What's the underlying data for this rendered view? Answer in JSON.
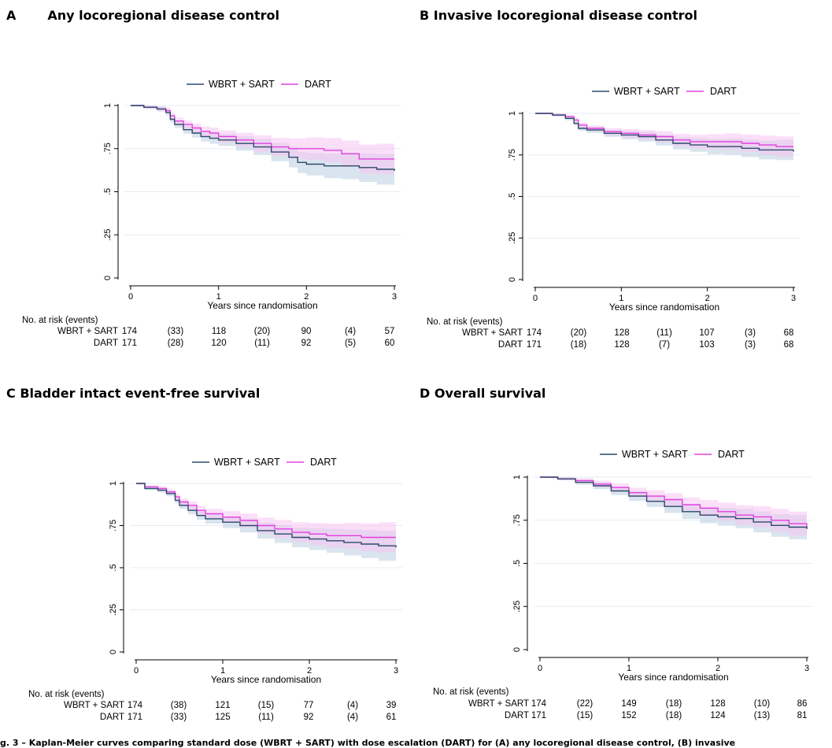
{
  "legend": {
    "series_a": "WBRT + SART",
    "series_b": "DART"
  },
  "colors": {
    "series_a": "#2b4a6b",
    "series_b": "#e040e0",
    "band_a": "#b9cde0",
    "band_b": "#f7c4f2",
    "grid": "#e6ecf1"
  },
  "axis": {
    "xlabel": "Years since randomisation",
    "x_ticks": [
      "0",
      "1",
      "2",
      "3"
    ],
    "y_ticks": [
      "0",
      ".25",
      ".5",
      ".75",
      "1"
    ]
  },
  "risk_table": {
    "header": "No. at risk (events)",
    "row_labels": [
      "WBRT + SART",
      "DART"
    ]
  },
  "caption": "g. 3 – Kaplan-Meier curves comparing standard dose (WBRT + SART) with dose escalation (DART) for (A) any locoregional disease control, (B) invasive",
  "chart_data": [
    {
      "letter": "A",
      "title": "Any locoregional disease control",
      "type": "line",
      "xlim": [
        0,
        3
      ],
      "ylim": [
        0,
        1
      ],
      "series": [
        {
          "name": "WBRT + SART",
          "x": [
            0,
            0.15,
            0.3,
            0.4,
            0.45,
            0.5,
            0.6,
            0.7,
            0.8,
            0.9,
            1.0,
            1.2,
            1.4,
            1.6,
            1.8,
            1.9,
            2.0,
            2.2,
            2.4,
            2.6,
            2.8,
            3.0
          ],
          "y": [
            1.0,
            0.99,
            0.98,
            0.96,
            0.92,
            0.89,
            0.86,
            0.84,
            0.82,
            0.81,
            0.8,
            0.78,
            0.76,
            0.73,
            0.7,
            0.67,
            0.66,
            0.65,
            0.65,
            0.64,
            0.63,
            0.62
          ]
        },
        {
          "name": "DART",
          "x": [
            0,
            0.15,
            0.3,
            0.4,
            0.45,
            0.5,
            0.6,
            0.7,
            0.8,
            0.9,
            1.0,
            1.2,
            1.4,
            1.6,
            1.8,
            2.0,
            2.2,
            2.4,
            2.6,
            2.8,
            3.0
          ],
          "y": [
            1.0,
            0.99,
            0.98,
            0.97,
            0.94,
            0.91,
            0.89,
            0.87,
            0.85,
            0.84,
            0.82,
            0.8,
            0.78,
            0.76,
            0.75,
            0.75,
            0.74,
            0.72,
            0.69,
            0.69,
            0.69
          ]
        }
      ],
      "risk": {
        "a": [
          "174",
          "(33)",
          "118",
          "(20)",
          "90",
          "(4)",
          "57"
        ],
        "b": [
          "171",
          "(28)",
          "120",
          "(11)",
          "92",
          "(5)",
          "60"
        ]
      }
    },
    {
      "letter": "B",
      "title": "Invasive locoregional disease control",
      "type": "line",
      "xlim": [
        0,
        3
      ],
      "ylim": [
        0,
        1
      ],
      "series": [
        {
          "name": "WBRT + SART",
          "x": [
            0,
            0.2,
            0.35,
            0.45,
            0.5,
            0.6,
            0.8,
            1.0,
            1.2,
            1.4,
            1.6,
            1.8,
            2.0,
            2.2,
            2.4,
            2.6,
            2.8,
            3.0
          ],
          "y": [
            1.0,
            0.99,
            0.97,
            0.94,
            0.91,
            0.9,
            0.88,
            0.87,
            0.86,
            0.84,
            0.82,
            0.81,
            0.8,
            0.8,
            0.79,
            0.78,
            0.78,
            0.77
          ]
        },
        {
          "name": "DART",
          "x": [
            0,
            0.2,
            0.35,
            0.45,
            0.5,
            0.6,
            0.8,
            1.0,
            1.2,
            1.4,
            1.6,
            1.8,
            2.0,
            2.2,
            2.4,
            2.6,
            2.8,
            3.0
          ],
          "y": [
            1.0,
            0.99,
            0.98,
            0.96,
            0.93,
            0.91,
            0.89,
            0.88,
            0.87,
            0.86,
            0.84,
            0.83,
            0.83,
            0.83,
            0.82,
            0.81,
            0.8,
            0.8
          ]
        }
      ],
      "risk": {
        "a": [
          "174",
          "(20)",
          "128",
          "(11)",
          "107",
          "(3)",
          "68"
        ],
        "b": [
          "171",
          "(18)",
          "128",
          "(7)",
          "103",
          "(3)",
          "68"
        ]
      }
    },
    {
      "letter": "C",
      "title": "Bladder intact event-free survival",
      "type": "line",
      "xlim": [
        0,
        3
      ],
      "ylim": [
        0,
        1
      ],
      "series": [
        {
          "name": "WBRT + SART",
          "x": [
            0,
            0.1,
            0.25,
            0.35,
            0.45,
            0.5,
            0.6,
            0.7,
            0.8,
            1.0,
            1.2,
            1.4,
            1.6,
            1.8,
            2.0,
            2.2,
            2.4,
            2.6,
            2.8,
            3.0
          ],
          "y": [
            1.0,
            0.97,
            0.96,
            0.94,
            0.9,
            0.87,
            0.84,
            0.81,
            0.79,
            0.77,
            0.75,
            0.72,
            0.7,
            0.68,
            0.67,
            0.66,
            0.65,
            0.64,
            0.63,
            0.62
          ]
        },
        {
          "name": "DART",
          "x": [
            0,
            0.1,
            0.25,
            0.35,
            0.45,
            0.5,
            0.6,
            0.7,
            0.8,
            1.0,
            1.2,
            1.4,
            1.6,
            1.8,
            2.0,
            2.2,
            2.4,
            2.6,
            2.8,
            3.0
          ],
          "y": [
            1.0,
            0.98,
            0.97,
            0.95,
            0.92,
            0.89,
            0.87,
            0.84,
            0.82,
            0.8,
            0.78,
            0.75,
            0.73,
            0.71,
            0.7,
            0.69,
            0.69,
            0.68,
            0.68,
            0.68
          ]
        }
      ],
      "risk": {
        "a": [
          "174",
          "(38)",
          "121",
          "(15)",
          "77",
          "(4)",
          "39"
        ],
        "b": [
          "171",
          "(33)",
          "125",
          "(11)",
          "92",
          "(4)",
          "61"
        ]
      }
    },
    {
      "letter": "D",
      "title": "Overall survival",
      "type": "line",
      "xlim": [
        0,
        3
      ],
      "ylim": [
        0,
        1
      ],
      "series": [
        {
          "name": "WBRT + SART",
          "x": [
            0,
            0.2,
            0.4,
            0.6,
            0.8,
            1.0,
            1.2,
            1.4,
            1.6,
            1.8,
            2.0,
            2.2,
            2.4,
            2.6,
            2.8,
            3.0
          ],
          "y": [
            1.0,
            0.99,
            0.97,
            0.95,
            0.92,
            0.89,
            0.86,
            0.83,
            0.8,
            0.78,
            0.77,
            0.76,
            0.74,
            0.72,
            0.71,
            0.7
          ]
        },
        {
          "name": "DART",
          "x": [
            0,
            0.2,
            0.4,
            0.6,
            0.8,
            1.0,
            1.2,
            1.4,
            1.6,
            1.8,
            2.0,
            2.2,
            2.4,
            2.6,
            2.8,
            3.0
          ],
          "y": [
            1.0,
            0.99,
            0.98,
            0.96,
            0.94,
            0.91,
            0.89,
            0.87,
            0.84,
            0.82,
            0.8,
            0.78,
            0.77,
            0.75,
            0.73,
            0.7
          ]
        }
      ],
      "risk": {
        "a": [
          "174",
          "(22)",
          "149",
          "(18)",
          "128",
          "(10)",
          "86"
        ],
        "b": [
          "171",
          "(15)",
          "152",
          "(18)",
          "124",
          "(13)",
          "81"
        ]
      }
    }
  ]
}
